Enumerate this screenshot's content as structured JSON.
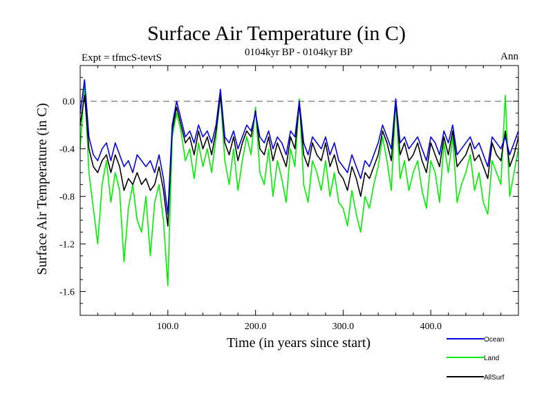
{
  "chart_data": {
    "type": "line",
    "title": "Surface Air Temperature (in C)",
    "subtitle": "0104kyr BP - 0104kyr BP",
    "left_label": "Expt = tfmcS-tevtS",
    "right_label": "Ann",
    "xlabel": "Time (in years since start)",
    "ylabel": "Surface Air Temperature (in C)",
    "xlim": [
      0,
      500
    ],
    "ylim": [
      -1.8,
      0.3
    ],
    "x_ticks": [
      100,
      200,
      300,
      400
    ],
    "x_tick_labels": [
      "100.0",
      "200.0",
      "300.0",
      "400.0"
    ],
    "y_ticks": [
      0.0,
      -0.4,
      -0.8,
      -1.2,
      -1.6
    ],
    "y_tick_labels": [
      "0.0",
      "-0.4",
      "-0.8",
      "-1.2",
      "-1.6"
    ],
    "reference_line": 0.0,
    "legend_position": "bottom-right",
    "series": [
      {
        "name": "Ocean",
        "color": "#0000dd",
        "x": [
          0,
          5,
          10,
          15,
          20,
          25,
          30,
          35,
          40,
          45,
          50,
          55,
          60,
          65,
          70,
          75,
          80,
          85,
          90,
          95,
          100,
          105,
          110,
          115,
          120,
          125,
          130,
          135,
          140,
          145,
          150,
          155,
          160,
          165,
          170,
          175,
          180,
          185,
          190,
          195,
          200,
          205,
          210,
          215,
          220,
          225,
          230,
          235,
          240,
          245,
          250,
          255,
          260,
          265,
          270,
          275,
          280,
          285,
          290,
          295,
          300,
          305,
          310,
          315,
          320,
          325,
          330,
          335,
          340,
          345,
          350,
          355,
          360,
          365,
          370,
          375,
          380,
          385,
          390,
          395,
          400,
          405,
          410,
          415,
          420,
          425,
          430,
          435,
          440,
          445,
          450,
          455,
          460,
          465,
          470,
          475,
          480,
          485,
          490,
          495,
          500
        ],
        "values": [
          -0.1,
          0.18,
          -0.3,
          -0.45,
          -0.5,
          -0.4,
          -0.35,
          -0.5,
          -0.35,
          -0.45,
          -0.55,
          -0.5,
          -0.6,
          -0.45,
          -0.5,
          -0.55,
          -0.5,
          -0.6,
          -0.45,
          -0.65,
          -0.95,
          -0.2,
          0.0,
          -0.15,
          -0.3,
          -0.25,
          -0.35,
          -0.2,
          -0.3,
          -0.25,
          -0.35,
          -0.2,
          0.1,
          -0.3,
          -0.35,
          -0.25,
          -0.4,
          -0.3,
          -0.2,
          -0.25,
          -0.1,
          -0.3,
          -0.35,
          -0.25,
          -0.4,
          -0.3,
          -0.35,
          -0.45,
          -0.25,
          -0.3,
          0.0,
          -0.35,
          -0.45,
          -0.3,
          -0.35,
          -0.4,
          -0.3,
          -0.45,
          -0.35,
          -0.5,
          -0.55,
          -0.6,
          -0.45,
          -0.55,
          -0.65,
          -0.5,
          -0.55,
          -0.45,
          -0.35,
          -0.2,
          -0.3,
          -0.4,
          0.02,
          -0.35,
          -0.3,
          -0.4,
          -0.35,
          -0.3,
          -0.4,
          -0.5,
          -0.3,
          -0.35,
          -0.45,
          -0.25,
          -0.35,
          -0.2,
          -0.45,
          -0.4,
          -0.35,
          -0.3,
          -0.4,
          -0.35,
          -0.45,
          -0.55,
          -0.3,
          -0.35,
          -0.4,
          -0.3,
          -0.45,
          -0.35,
          -0.25
        ]
      },
      {
        "name": "Land",
        "color": "#00ee00",
        "x": [
          0,
          5,
          10,
          15,
          20,
          25,
          30,
          35,
          40,
          45,
          50,
          55,
          60,
          65,
          70,
          75,
          80,
          85,
          90,
          95,
          100,
          105,
          110,
          115,
          120,
          125,
          130,
          135,
          140,
          145,
          150,
          155,
          160,
          165,
          170,
          175,
          180,
          185,
          190,
          195,
          200,
          205,
          210,
          215,
          220,
          225,
          230,
          235,
          240,
          245,
          250,
          255,
          260,
          265,
          270,
          275,
          280,
          285,
          290,
          295,
          300,
          305,
          310,
          315,
          320,
          325,
          330,
          335,
          340,
          345,
          350,
          355,
          360,
          365,
          370,
          375,
          380,
          385,
          390,
          395,
          400,
          405,
          410,
          415,
          420,
          425,
          430,
          435,
          440,
          445,
          450,
          455,
          460,
          465,
          470,
          475,
          480,
          485,
          490,
          495,
          500
        ],
        "values": [
          -0.4,
          0.15,
          -0.6,
          -0.9,
          -1.2,
          -0.7,
          -0.5,
          -0.85,
          -0.6,
          -0.75,
          -1.35,
          -0.9,
          -0.7,
          -1.0,
          -1.1,
          -0.8,
          -1.3,
          -0.85,
          -0.7,
          -1.0,
          -1.55,
          -0.3,
          -0.1,
          -0.25,
          -0.5,
          -0.4,
          -0.65,
          -0.35,
          -0.55,
          -0.4,
          -0.6,
          -0.3,
          0.05,
          -0.5,
          -0.7,
          -0.4,
          -0.75,
          -0.5,
          -0.3,
          -0.45,
          -0.05,
          -0.6,
          -0.7,
          -0.4,
          -0.8,
          -0.5,
          -0.65,
          -0.85,
          -0.4,
          -0.55,
          0.02,
          -0.7,
          -0.85,
          -0.5,
          -0.6,
          -0.75,
          -0.5,
          -0.8,
          -0.6,
          -0.85,
          -0.9,
          -1.05,
          -0.75,
          -0.95,
          -1.1,
          -0.8,
          -0.9,
          -0.7,
          -0.55,
          -0.3,
          -0.5,
          -0.75,
          0.0,
          -0.65,
          -0.5,
          -0.75,
          -0.6,
          -0.5,
          -0.75,
          -0.9,
          -0.5,
          -0.6,
          -0.85,
          -0.35,
          -0.6,
          -0.3,
          -0.85,
          -0.7,
          -0.6,
          -0.45,
          -0.75,
          -0.6,
          -0.85,
          -0.95,
          -0.5,
          -0.6,
          -0.7,
          0.05,
          -0.8,
          -0.6,
          -0.4
        ]
      },
      {
        "name": "AllSurf",
        "color": "#000000",
        "x": [
          0,
          5,
          10,
          15,
          20,
          25,
          30,
          35,
          40,
          45,
          50,
          55,
          60,
          65,
          70,
          75,
          80,
          85,
          90,
          95,
          100,
          105,
          110,
          115,
          120,
          125,
          130,
          135,
          140,
          145,
          150,
          155,
          160,
          165,
          170,
          175,
          180,
          185,
          190,
          195,
          200,
          205,
          210,
          215,
          220,
          225,
          230,
          235,
          240,
          245,
          250,
          255,
          260,
          265,
          270,
          275,
          280,
          285,
          290,
          295,
          300,
          305,
          310,
          315,
          320,
          325,
          330,
          335,
          340,
          345,
          350,
          355,
          360,
          365,
          370,
          375,
          380,
          385,
          390,
          395,
          400,
          405,
          410,
          415,
          420,
          425,
          430,
          435,
          440,
          445,
          450,
          455,
          460,
          465,
          470,
          475,
          480,
          485,
          490,
          495,
          500
        ],
        "values": [
          -0.2,
          0.05,
          -0.4,
          -0.55,
          -0.6,
          -0.5,
          -0.45,
          -0.6,
          -0.45,
          -0.55,
          -0.75,
          -0.65,
          -0.7,
          -0.6,
          -0.7,
          -0.65,
          -0.75,
          -0.7,
          -0.55,
          -0.75,
          -1.05,
          -0.25,
          -0.05,
          -0.2,
          -0.35,
          -0.3,
          -0.45,
          -0.25,
          -0.4,
          -0.3,
          -0.45,
          -0.25,
          0.05,
          -0.35,
          -0.45,
          -0.3,
          -0.5,
          -0.35,
          -0.25,
          -0.3,
          -0.08,
          -0.4,
          -0.45,
          -0.3,
          -0.5,
          -0.35,
          -0.45,
          -0.55,
          -0.3,
          -0.4,
          -0.02,
          -0.45,
          -0.55,
          -0.35,
          -0.45,
          -0.5,
          -0.35,
          -0.55,
          -0.45,
          -0.6,
          -0.65,
          -0.75,
          -0.55,
          -0.65,
          -0.8,
          -0.6,
          -0.65,
          -0.55,
          -0.45,
          -0.25,
          -0.35,
          -0.5,
          0.0,
          -0.45,
          -0.35,
          -0.5,
          -0.45,
          -0.35,
          -0.5,
          -0.6,
          -0.35,
          -0.45,
          -0.55,
          -0.3,
          -0.45,
          -0.25,
          -0.55,
          -0.5,
          -0.45,
          -0.35,
          -0.5,
          -0.45,
          -0.55,
          -0.65,
          -0.35,
          -0.45,
          -0.5,
          -0.25,
          -0.55,
          -0.45,
          -0.3
        ]
      }
    ]
  }
}
